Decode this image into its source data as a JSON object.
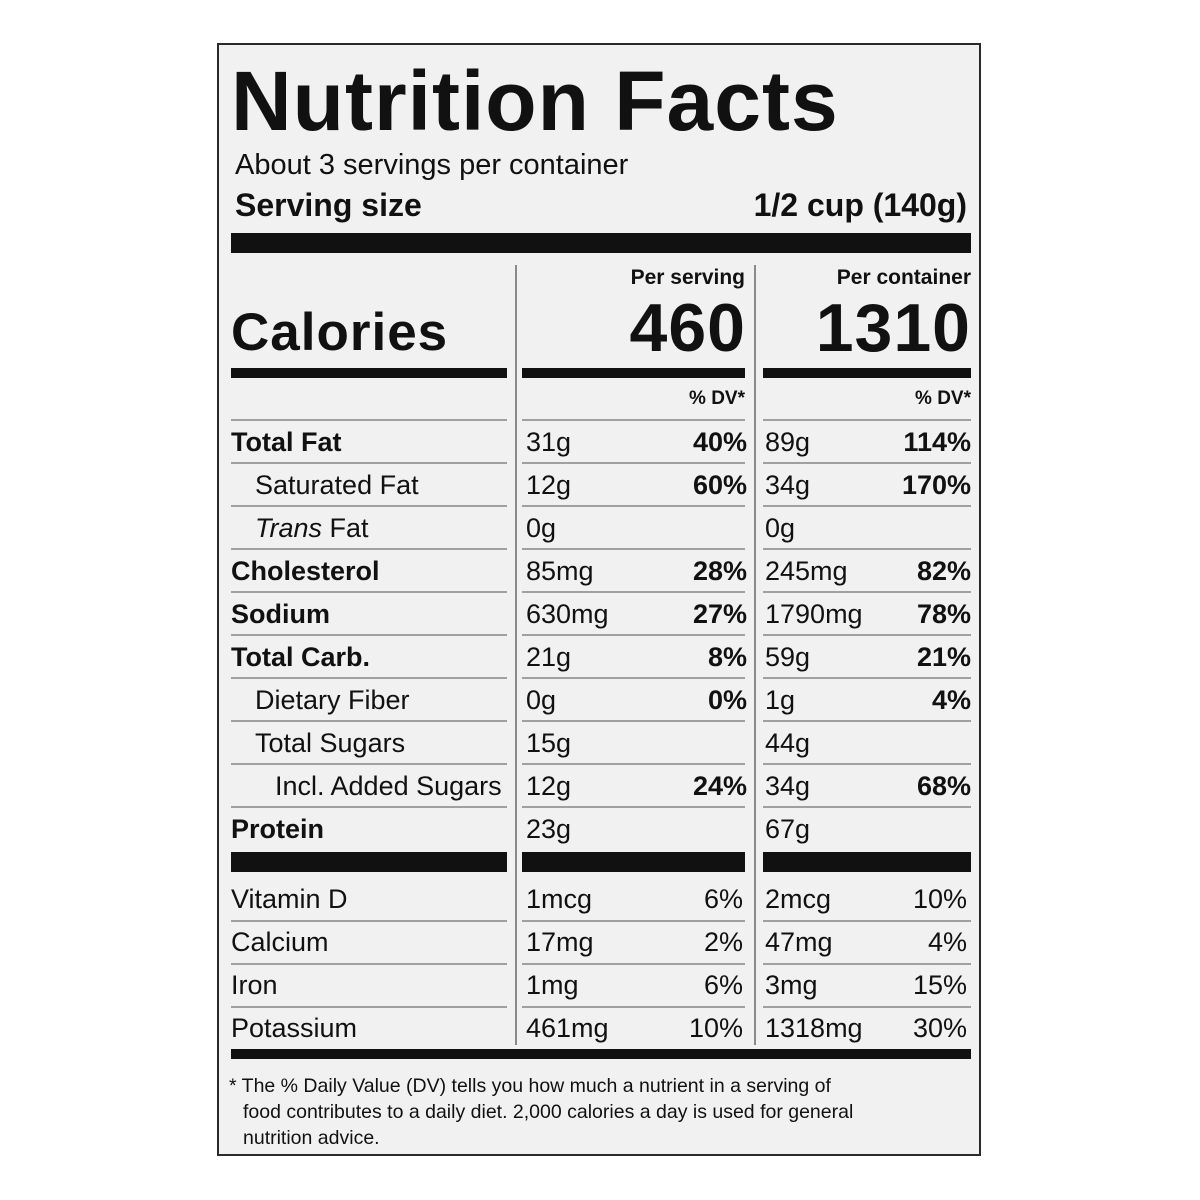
{
  "title": "Nutrition Facts",
  "servings_per_container": "About 3 servings per container",
  "serving_size_label": "Serving size",
  "serving_size_value": "1/2 cup (140g)",
  "calories_label": "Calories",
  "per_serving": {
    "header": "Per serving",
    "calories": "460",
    "dv_header": "% DV*"
  },
  "per_container": {
    "header": "Per container",
    "calories": "1310",
    "dv_header": "% DV*"
  },
  "nutrients": [
    {
      "label": "Total Fat",
      "bold": true,
      "indent": 0,
      "serving_amount": "31g",
      "serving_dv": "40%",
      "container_amount": "89g",
      "container_dv": "114%"
    },
    {
      "label": "Saturated Fat",
      "bold": false,
      "indent": 1,
      "serving_amount": "12g",
      "serving_dv": "60%",
      "container_amount": "34g",
      "container_dv": "170%"
    },
    {
      "label_italic": "Trans",
      "label": " Fat",
      "bold": false,
      "indent": 1,
      "serving_amount": "0g",
      "serving_dv": "",
      "container_amount": "0g",
      "container_dv": ""
    },
    {
      "label": "Cholesterol",
      "bold": true,
      "indent": 0,
      "serving_amount": "85mg",
      "serving_dv": "28%",
      "container_amount": "245mg",
      "container_dv": "82%"
    },
    {
      "label": "Sodium",
      "bold": true,
      "indent": 0,
      "serving_amount": "630mg",
      "serving_dv": "27%",
      "container_amount": "1790mg",
      "container_dv": "78%"
    },
    {
      "label": "Total Carb.",
      "bold": true,
      "indent": 0,
      "serving_amount": "21g",
      "serving_dv": "8%",
      "container_amount": "59g",
      "container_dv": "21%"
    },
    {
      "label": "Dietary Fiber",
      "bold": false,
      "indent": 1,
      "serving_amount": "0g",
      "serving_dv": "0%",
      "container_amount": "1g",
      "container_dv": "4%"
    },
    {
      "label": "Total Sugars",
      "bold": false,
      "indent": 1,
      "serving_amount": "15g",
      "serving_dv": "",
      "container_amount": "44g",
      "container_dv": ""
    },
    {
      "label": "Incl. Added Sugars",
      "bold": false,
      "indent": 2,
      "serving_amount": "12g",
      "serving_dv": "24%",
      "container_amount": "34g",
      "container_dv": "68%"
    },
    {
      "label": "Protein",
      "bold": true,
      "indent": 0,
      "serving_amount": "23g",
      "serving_dv": "",
      "container_amount": "67g",
      "container_dv": ""
    }
  ],
  "vitamins": [
    {
      "label": "Vitamin D",
      "serving_amount": "1mcg",
      "serving_dv": "6%",
      "container_amount": "2mcg",
      "container_dv": "10%"
    },
    {
      "label": "Calcium",
      "serving_amount": "17mg",
      "serving_dv": "2%",
      "container_amount": "47mg",
      "container_dv": "4%"
    },
    {
      "label": "Iron",
      "serving_amount": "1mg",
      "serving_dv": "6%",
      "container_amount": "3mg",
      "container_dv": "15%"
    },
    {
      "label": "Potassium",
      "serving_amount": "461mg",
      "serving_dv": "10%",
      "container_amount": "1318mg",
      "container_dv": "30%"
    }
  ],
  "footnote_line1": "* The % Daily Value (DV) tells you how much a nutrient in a serving of",
  "footnote_line2": "food contributes to a daily diet. 2,000 calories a day is used for general",
  "footnote_line3": "nutrition advice."
}
